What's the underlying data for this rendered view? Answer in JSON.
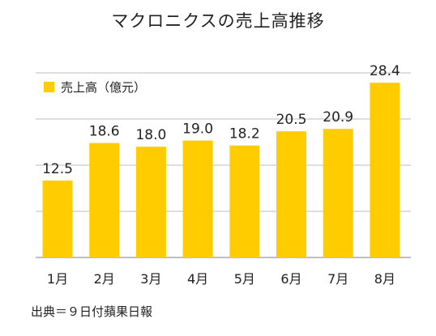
{
  "chart_data": {
    "type": "bar",
    "title": "マクロニクスの売上高推移",
    "categories": [
      "1月",
      "2月",
      "3月",
      "4月",
      "5月",
      "6月",
      "7月",
      "8月"
    ],
    "series": [
      {
        "name": "売上高（億元）",
        "values": [
          12.5,
          18.6,
          18.0,
          19.0,
          18.2,
          20.5,
          20.9,
          28.4
        ]
      }
    ],
    "value_labels": [
      "12.5",
      "18.6",
      "18.0",
      "19.0",
      "18.2",
      "20.5",
      "20.9",
      "28.4"
    ],
    "ylim": [
      0,
      30
    ],
    "grid": true,
    "legend": "top-left",
    "color": "#FFCC00"
  },
  "source": "出典＝９日付蘋果日報"
}
